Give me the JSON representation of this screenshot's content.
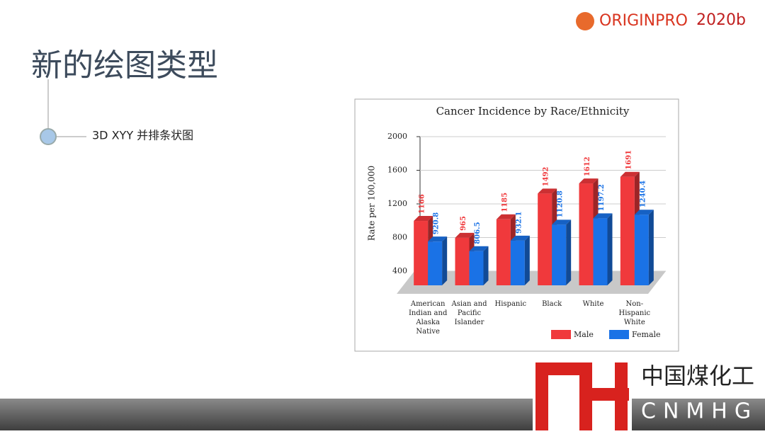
{
  "slide": {
    "brand": "ORIGINPRO",
    "brand_version": "2020b",
    "title": "新的绘图类型",
    "bullet": "3D XYY 并排条状图",
    "footer_cn": "中国煤化工",
    "footer_en": "CNMHG"
  },
  "chart_data": {
    "type": "bar3d",
    "title": "Cancer Incidence by Race/Ethnicity",
    "ylabel": "Rate per 100,000",
    "categories": [
      "American Indian and Alaska Native",
      "Asian and Pacific Islander",
      "Hispanic",
      "Black",
      "White",
      "Non-Hispanic White"
    ],
    "series": [
      {
        "name": "Male",
        "color": "#f0393c",
        "values": [
          1166,
          965,
          1185,
          1492,
          1612,
          1691
        ]
      },
      {
        "name": "Female",
        "color": "#1a72e6",
        "values": [
          920.8,
          806.5,
          932.1,
          1120.8,
          1197.2,
          1240.4
        ]
      }
    ],
    "ylim": [
      400,
      2000
    ],
    "yticks": [
      400,
      800,
      1200,
      1600,
      2000
    ],
    "grid": true,
    "legend": "bottom-right"
  }
}
